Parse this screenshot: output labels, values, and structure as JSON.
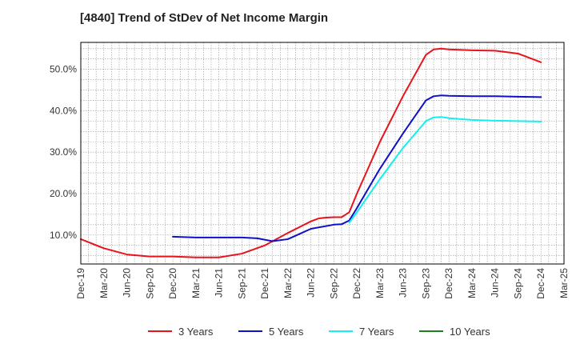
{
  "chart_data": {
    "type": "line",
    "title": "[4840]  Trend of StDev of Net Income Margin",
    "xlabel": "",
    "ylabel": "",
    "x_ticks": [
      "Dec-19",
      "Mar-20",
      "Jun-20",
      "Sep-20",
      "Dec-20",
      "Mar-21",
      "Jun-21",
      "Sep-21",
      "Dec-21",
      "Mar-22",
      "Jun-22",
      "Sep-22",
      "Dec-22",
      "Mar-23",
      "Jun-23",
      "Sep-23",
      "Dec-23",
      "Mar-24",
      "Jun-24",
      "Sep-24",
      "Dec-24",
      "Mar-25"
    ],
    "y_ticks": [
      10,
      20,
      30,
      40,
      50
    ],
    "y_tick_labels": [
      "10.0%",
      "20.0%",
      "30.0%",
      "40.0%",
      "50.0%"
    ],
    "ylim": [
      3,
      56.5
    ],
    "grid": true,
    "legend_position": "bottom",
    "series": [
      {
        "name": "3 Years",
        "color": "#e8141c",
        "points": [
          [
            "Dec-19",
            9.0
          ],
          [
            "Mar-20",
            6.8
          ],
          [
            "Jun-20",
            5.3
          ],
          [
            "Sep-20",
            4.8
          ],
          [
            "Dec-20",
            4.8
          ],
          [
            "Mar-21",
            4.6
          ],
          [
            "Jun-21",
            4.6
          ],
          [
            "Sep-21",
            5.5
          ],
          [
            "Dec-21",
            7.5
          ],
          [
            "Mar-22",
            10.5
          ],
          [
            "Jun-22",
            13.3
          ],
          [
            "Jul-22",
            14.0
          ],
          [
            "Aug-22",
            14.2
          ],
          [
            "Sep-22",
            14.3
          ],
          [
            "Oct-22",
            14.3
          ],
          [
            "Nov-22",
            15.5
          ],
          [
            "Dec-22",
            20.0
          ],
          [
            "Mar-23",
            32.5
          ],
          [
            "Jun-23",
            43.5
          ],
          [
            "Sep-23",
            53.5
          ],
          [
            "Oct-23",
            54.8
          ],
          [
            "Nov-23",
            55.0
          ],
          [
            "Dec-23",
            54.8
          ],
          [
            "Mar-24",
            54.6
          ],
          [
            "Jun-24",
            54.5
          ],
          [
            "Sep-24",
            53.8
          ],
          [
            "Dec-24",
            51.7
          ]
        ]
      },
      {
        "name": "5 Years",
        "color": "#1010c8",
        "points": [
          [
            "Dec-20",
            9.6
          ],
          [
            "Mar-21",
            9.4
          ],
          [
            "Jun-21",
            9.4
          ],
          [
            "Sep-21",
            9.4
          ],
          [
            "Nov-21",
            9.2
          ],
          [
            "Jan-22",
            8.5
          ],
          [
            "Mar-22",
            9.0
          ],
          [
            "Jun-22",
            11.5
          ],
          [
            "Sep-22",
            12.5
          ],
          [
            "Oct-22",
            12.6
          ],
          [
            "Nov-22",
            13.5
          ],
          [
            "Dec-22",
            16.5
          ],
          [
            "Mar-23",
            26.0
          ],
          [
            "Jun-23",
            34.5
          ],
          [
            "Sep-23",
            42.5
          ],
          [
            "Oct-23",
            43.5
          ],
          [
            "Nov-23",
            43.7
          ],
          [
            "Dec-23",
            43.6
          ],
          [
            "Mar-24",
            43.5
          ],
          [
            "Jun-24",
            43.5
          ],
          [
            "Sep-24",
            43.4
          ],
          [
            "Dec-24",
            43.3
          ]
        ]
      },
      {
        "name": "7 Years",
        "color": "#14f0f0",
        "points": [
          [
            "Nov-22",
            13.0
          ],
          [
            "Dec-22",
            15.5
          ],
          [
            "Mar-23",
            23.5
          ],
          [
            "Jun-23",
            31.0
          ],
          [
            "Sep-23",
            37.5
          ],
          [
            "Oct-23",
            38.4
          ],
          [
            "Nov-23",
            38.5
          ],
          [
            "Dec-23",
            38.2
          ],
          [
            "Mar-24",
            37.8
          ],
          [
            "Jun-24",
            37.6
          ],
          [
            "Sep-24",
            37.5
          ],
          [
            "Dec-24",
            37.4
          ]
        ]
      },
      {
        "name": "10 Years",
        "color": "#208020",
        "points": []
      }
    ]
  }
}
